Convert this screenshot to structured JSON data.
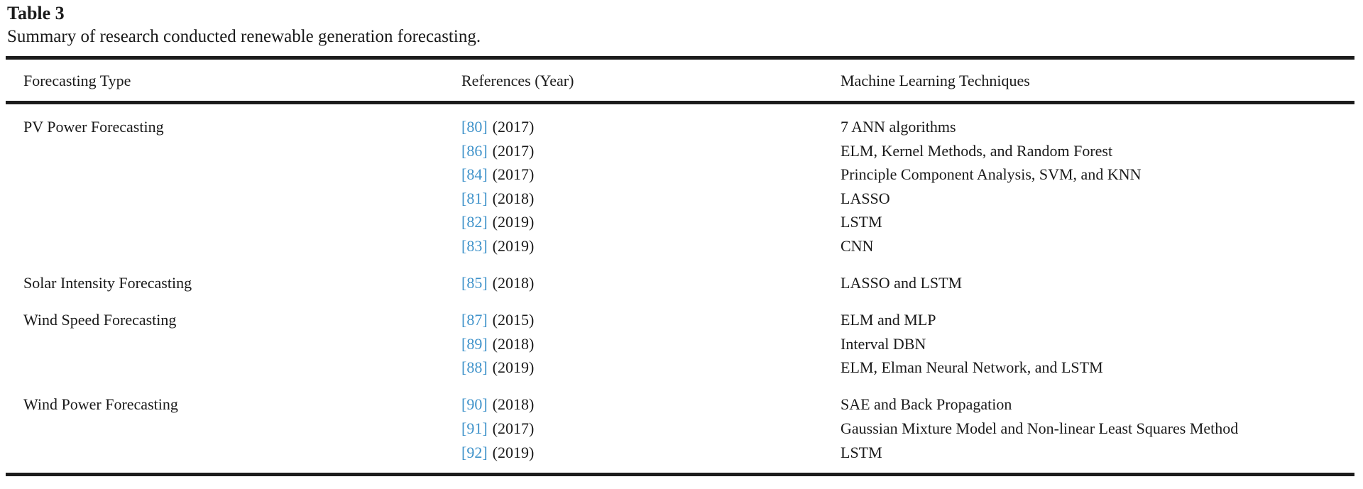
{
  "title": "Table 3",
  "caption": "Summary of research conducted renewable generation forecasting.",
  "colors": {
    "link_blue": "#3e92ca",
    "text": "#1a1a1a",
    "rule": "#1c1c1c"
  },
  "table": {
    "columns": {
      "c1": "Forecasting Type",
      "c2": "References (Year)",
      "c3": "Machine Learning Techniques"
    },
    "groups": [
      {
        "type": "PV Power Forecasting",
        "rows": [
          {
            "ref": "[80]",
            "year": "(2017)",
            "technique": "7 ANN algorithms"
          },
          {
            "ref": "[86]",
            "year": "(2017)",
            "technique": "ELM, Kernel Methods, and Random Forest"
          },
          {
            "ref": "[84]",
            "year": "(2017)",
            "technique": "Principle Component Analysis, SVM, and KNN"
          },
          {
            "ref": "[81]",
            "year": "(2018)",
            "technique": "LASSO"
          },
          {
            "ref": "[82]",
            "year": "(2019)",
            "technique": "LSTM"
          },
          {
            "ref": "[83]",
            "year": "(2019)",
            "technique": "CNN"
          }
        ]
      },
      {
        "type": "Solar Intensity Forecasting",
        "rows": [
          {
            "ref": "[85]",
            "year": "(2018)",
            "technique": "LASSO and LSTM"
          }
        ]
      },
      {
        "type": "Wind Speed Forecasting",
        "rows": [
          {
            "ref": "[87]",
            "year": "(2015)",
            "technique": "ELM and MLP"
          },
          {
            "ref": "[89]",
            "year": "(2018)",
            "technique": "Interval DBN"
          },
          {
            "ref": "[88]",
            "year": "(2019)",
            "technique": "ELM, Elman Neural Network, and LSTM"
          }
        ]
      },
      {
        "type": "Wind Power Forecasting",
        "rows": [
          {
            "ref": "[90]",
            "year": "(2018)",
            "technique": "SAE and Back Propagation"
          },
          {
            "ref": "[91]",
            "year": "(2017)",
            "technique": "Gaussian Mixture Model and Non-linear Least Squares Method"
          },
          {
            "ref": "[92]",
            "year": "(2019)",
            "technique": "LSTM"
          }
        ]
      }
    ]
  }
}
